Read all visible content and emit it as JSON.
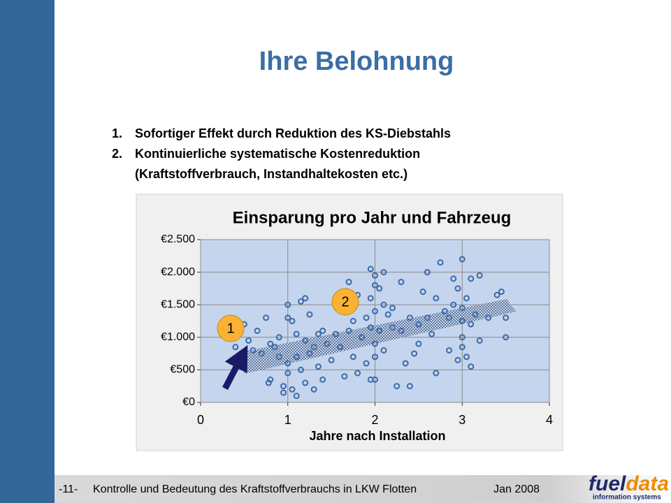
{
  "slide": {
    "title": "Ihre Belohnung",
    "list": [
      {
        "number": "1.",
        "lines": [
          "Sofortiger Effekt durch Reduktion des KS-Diebstahls"
        ]
      },
      {
        "number": "2.",
        "lines": [
          "Kontinuierliche systematische Kostenreduktion",
          "(Kraftstoffverbrauch, Instandhaltekosten etc.)"
        ]
      }
    ],
    "footer": {
      "page": "-11-",
      "text": "Kontrolle und Bedeutung des Kraftstoffverbrauchs in LKW Flotten",
      "date": "Jan 2008"
    },
    "logo": {
      "part1": "fuel",
      "part2": "data",
      "tagline": "information systems"
    }
  },
  "chart_data": {
    "type": "scatter",
    "title": "Einsparung pro Jahr und Fahrzeug",
    "x_label": "Jahre nach Installation",
    "annotations": [
      "1",
      "2"
    ],
    "xlim": [
      0,
      4
    ],
    "xticks": [
      0,
      1,
      2,
      3,
      4
    ],
    "ylim": [
      0,
      2500
    ],
    "yticks": [
      {
        "value": 0,
        "label": "€0"
      },
      {
        "value": 500,
        "label": "€500"
      },
      {
        "value": 1000,
        "label": "€1.000"
      },
      {
        "value": 1500,
        "label": "€1.500"
      },
      {
        "value": 2000,
        "label": "€2.000"
      },
      {
        "value": 2500,
        "label": "€2.500"
      }
    ],
    "grid": true,
    "series": [
      {
        "color": "#3c6aa8",
        "x": [
          0.4,
          0.45,
          0.5,
          0.55,
          0.6,
          0.65,
          0.7,
          0.75,
          0.8,
          0.78,
          0.8,
          0.85,
          0.9,
          0.9,
          0.95,
          0.95,
          1.0,
          1.0,
          1.0,
          1.0,
          1.05,
          1.05,
          1.1,
          1.1,
          1.1,
          1.15,
          1.15,
          1.2,
          1.2,
          1.2,
          1.25,
          1.25,
          1.3,
          1.3,
          1.35,
          1.35,
          1.4,
          1.4,
          1.45,
          1.5,
          1.55,
          1.6,
          1.6,
          1.65,
          1.7,
          1.7,
          1.75,
          1.75,
          1.8,
          1.8,
          1.85,
          1.9,
          1.9,
          1.95,
          1.95,
          1.95,
          2.0,
          2.0,
          2.0,
          2.0,
          2.0,
          2.0,
          2.05,
          2.05,
          2.1,
          2.1,
          2.15,
          2.2,
          2.2,
          2.25,
          2.3,
          2.3,
          2.35,
          2.4,
          2.4,
          2.45,
          2.5,
          2.5,
          2.55,
          2.6,
          2.6,
          2.65,
          2.7,
          2.7,
          2.75,
          2.8,
          2.85,
          2.85,
          2.9,
          2.9,
          2.95,
          2.95,
          3.0,
          3.0,
          3.0,
          3.0,
          3.0,
          3.05,
          3.05,
          3.1,
          3.1,
          3.1,
          3.15,
          3.2,
          3.2,
          3.3,
          3.4,
          3.45,
          3.5,
          3.5,
          1.95,
          2.1
        ],
        "values": [
          850,
          1150,
          1200,
          950,
          800,
          1100,
          750,
          1300,
          900,
          300,
          350,
          850,
          700,
          1000,
          150,
          250,
          1500,
          1300,
          600,
          450,
          1250,
          200,
          1050,
          700,
          100,
          1550,
          500,
          1600,
          950,
          300,
          1350,
          750,
          850,
          200,
          1050,
          550,
          1100,
          350,
          900,
          650,
          1050,
          1550,
          850,
          400,
          1850,
          1100,
          700,
          1250,
          1650,
          450,
          1000,
          1300,
          600,
          2050,
          1150,
          350,
          1950,
          1800,
          1400,
          900,
          700,
          350,
          1750,
          1100,
          2000,
          800,
          1350,
          1150,
          1450,
          250,
          1850,
          1100,
          600,
          1300,
          250,
          750,
          1200,
          900,
          1700,
          1300,
          2000,
          1050,
          1600,
          450,
          2150,
          1400,
          1300,
          800,
          1900,
          1500,
          1750,
          650,
          2200,
          1450,
          1250,
          1000,
          850,
          1600,
          700,
          1900,
          1200,
          550,
          1350,
          1950,
          950,
          1300,
          1650,
          1700,
          1300,
          1000,
          1600,
          1500
        ]
      }
    ]
  }
}
